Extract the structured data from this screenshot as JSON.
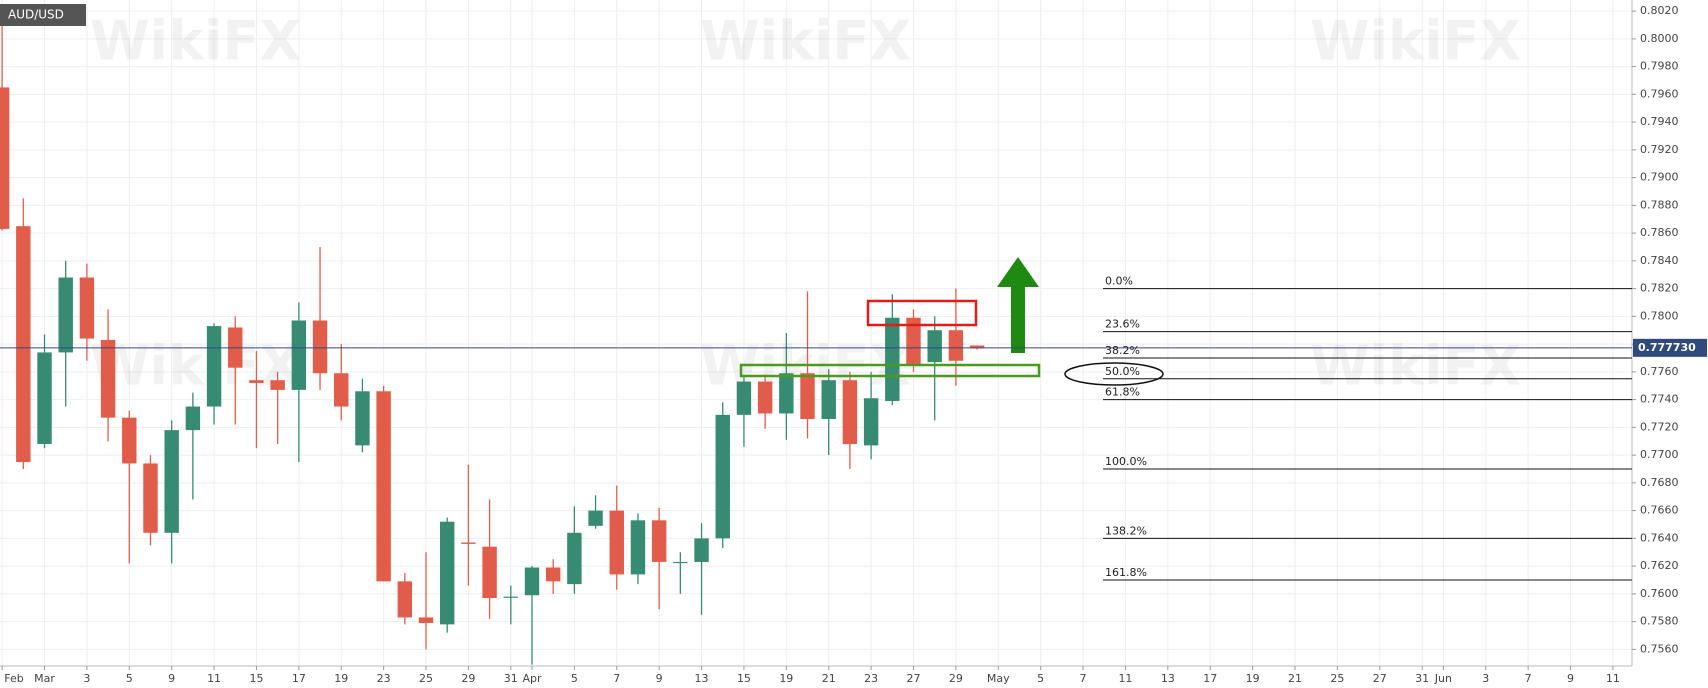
{
  "chart_data": {
    "type": "candlestick",
    "symbol": "AUD/USD",
    "watermark": "WikiFX",
    "up_color": "#378b73",
    "down_color": "#e25c4a",
    "grid": true,
    "x": [
      0,
      1,
      2,
      3,
      4,
      5,
      6,
      7,
      8,
      9,
      10,
      11,
      12,
      13,
      14,
      15,
      16,
      17,
      18,
      19,
      20,
      21,
      22,
      23,
      24,
      25,
      26,
      27,
      28,
      29,
      30,
      31,
      32,
      33,
      34,
      35,
      36,
      37,
      38,
      39,
      40,
      41,
      42,
      43,
      44,
      45,
      46
    ],
    "open": [
      0.7965,
      0.7865,
      0.7708,
      0.7774,
      0.7828,
      0.7783,
      0.7727,
      0.7694,
      0.7644,
      0.7718,
      0.7735,
      0.7792,
      0.7754,
      0.7754,
      0.7747,
      0.7797,
      0.7759,
      0.7707,
      0.7746,
      0.7609,
      0.7583,
      0.7578,
      0.7637,
      0.7634,
      0.7598,
      0.7599,
      0.7619,
      0.7607,
      0.7649,
      0.766,
      0.7614,
      0.7653,
      0.7623,
      0.7623,
      0.764,
      0.7729,
      0.7753,
      0.773,
      0.7759,
      0.7726,
      0.7754,
      0.7707,
      0.7739,
      0.7799,
      0.7767,
      0.779,
      0.7779
    ],
    "high": [
      0.801,
      0.7885,
      0.7787,
      0.784,
      0.7838,
      0.7805,
      0.7732,
      0.77,
      0.7725,
      0.7745,
      0.7795,
      0.78,
      0.7775,
      0.776,
      0.781,
      0.785,
      0.778,
      0.7755,
      0.775,
      0.7615,
      0.763,
      0.7655,
      0.7693,
      0.7668,
      0.7606,
      0.762,
      0.7625,
      0.7663,
      0.7671,
      0.7678,
      0.7658,
      0.7662,
      0.763,
      0.7651,
      0.7738,
      0.7757,
      0.7758,
      0.7788,
      0.7818,
      0.7762,
      0.776,
      0.776,
      0.7816,
      0.7805,
      0.78,
      0.782,
      0.7779
    ],
    "low": [
      0.7862,
      0.769,
      0.7705,
      0.7735,
      0.7768,
      0.771,
      0.7622,
      0.7635,
      0.7622,
      0.7668,
      0.7722,
      0.7722,
      0.7705,
      0.7708,
      0.7695,
      0.7747,
      0.7725,
      0.7702,
      0.7609,
      0.7578,
      0.756,
      0.7572,
      0.7606,
      0.7582,
      0.7578,
      0.7549,
      0.76,
      0.76,
      0.7647,
      0.7603,
      0.7607,
      0.7589,
      0.76,
      0.7585,
      0.7633,
      0.7706,
      0.7719,
      0.7711,
      0.7712,
      0.77,
      0.769,
      0.7697,
      0.7736,
      0.776,
      0.7725,
      0.775,
      0.7776
    ],
    "close": [
      0.7863,
      0.7695,
      0.7774,
      0.7828,
      0.7784,
      0.7727,
      0.7694,
      0.7644,
      0.7718,
      0.7735,
      0.7793,
      0.7763,
      0.7752,
      0.7747,
      0.7797,
      0.7759,
      0.7735,
      0.7746,
      0.7609,
      0.7583,
      0.7579,
      0.7652,
      0.7636,
      0.7597,
      0.7598,
      0.7619,
      0.7609,
      0.7644,
      0.766,
      0.7614,
      0.7653,
      0.7623,
      0.7623,
      0.764,
      0.7729,
      0.7753,
      0.773,
      0.7759,
      0.7726,
      0.7754,
      0.7708,
      0.7741,
      0.7799,
      0.7765,
      0.779,
      0.7768,
      0.7777
    ],
    "xlim": [
      -0.1,
      76.9
    ],
    "ylim": [
      0.7548,
      0.8028
    ],
    "xticks": [
      {
        "value": 0,
        "label": "Feb"
      },
      {
        "value": 2,
        "label": "Mar"
      },
      {
        "value": 4,
        "label": "3"
      },
      {
        "value": 6,
        "label": "5"
      },
      {
        "value": 8,
        "label": "9"
      },
      {
        "value": 10,
        "label": "11"
      },
      {
        "value": 12,
        "label": "15"
      },
      {
        "value": 14,
        "label": "17"
      },
      {
        "value": 16,
        "label": "19"
      },
      {
        "value": 18,
        "label": "23"
      },
      {
        "value": 20,
        "label": "25"
      },
      {
        "value": 22,
        "label": "29"
      },
      {
        "value": 24,
        "label": "31"
      },
      {
        "value": 25,
        "label": "Apr"
      },
      {
        "value": 27,
        "label": "5"
      },
      {
        "value": 29,
        "label": "7"
      },
      {
        "value": 31,
        "label": "9"
      },
      {
        "value": 33,
        "label": "13"
      },
      {
        "value": 35,
        "label": "15"
      },
      {
        "value": 37,
        "label": "19"
      },
      {
        "value": 39,
        "label": "21"
      },
      {
        "value": 41,
        "label": "23"
      },
      {
        "value": 43,
        "label": "27"
      },
      {
        "value": 45,
        "label": "29"
      },
      {
        "value": 47,
        "label": "May"
      },
      {
        "value": 49,
        "label": "5"
      },
      {
        "value": 51,
        "label": "7"
      },
      {
        "value": 53,
        "label": "11"
      },
      {
        "value": 55,
        "label": "13"
      },
      {
        "value": 57,
        "label": "17"
      },
      {
        "value": 59,
        "label": "19"
      },
      {
        "value": 61,
        "label": "21"
      },
      {
        "value": 63,
        "label": "25"
      },
      {
        "value": 65,
        "label": "27"
      },
      {
        "value": 67,
        "label": "31"
      },
      {
        "value": 68,
        "label": "Jun"
      },
      {
        "value": 70,
        "label": "3"
      },
      {
        "value": 72,
        "label": "7"
      },
      {
        "value": 74,
        "label": "9"
      },
      {
        "value": 76,
        "label": "11"
      }
    ],
    "yticks": [
      {
        "value": 0.756,
        "label": "0.7560"
      },
      {
        "value": 0.758,
        "label": "0.7580"
      },
      {
        "value": 0.76,
        "label": "0.7600"
      },
      {
        "value": 0.762,
        "label": "0.7620"
      },
      {
        "value": 0.764,
        "label": "0.7640"
      },
      {
        "value": 0.766,
        "label": "0.7660"
      },
      {
        "value": 0.768,
        "label": "0.7680"
      },
      {
        "value": 0.77,
        "label": "0.7700"
      },
      {
        "value": 0.772,
        "label": "0.7720"
      },
      {
        "value": 0.774,
        "label": "0.7740"
      },
      {
        "value": 0.776,
        "label": "0.7760"
      },
      {
        "value": 0.778,
        "label": "0.7780"
      },
      {
        "value": 0.78,
        "label": "0.7800"
      },
      {
        "value": 0.782,
        "label": "0.7820"
      },
      {
        "value": 0.784,
        "label": "0.7840"
      },
      {
        "value": 0.786,
        "label": "0.7860"
      },
      {
        "value": 0.788,
        "label": "0.7880"
      },
      {
        "value": 0.79,
        "label": "0.7900"
      },
      {
        "value": 0.792,
        "label": "0.7920"
      },
      {
        "value": 0.794,
        "label": "0.7940"
      },
      {
        "value": 0.796,
        "label": "0.7960"
      },
      {
        "value": 0.798,
        "label": "0.7980"
      },
      {
        "value": 0.8,
        "label": "0.8000"
      },
      {
        "value": 0.802,
        "label": "0.8020"
      }
    ],
    "last_price": {
      "value": 0.77773,
      "label": "0.777730"
    },
    "fib_levels": [
      {
        "label": "0.0%",
        "value": 0.782
      },
      {
        "label": "23.6%",
        "value": 0.7789
      },
      {
        "label": "38.2%",
        "value": 0.777
      },
      {
        "label": "50.0%",
        "value": 0.7755
      },
      {
        "label": "61.8%",
        "value": 0.774
      },
      {
        "label": "100.0%",
        "value": 0.769
      },
      {
        "label": "138.2%",
        "value": 0.764
      },
      {
        "label": "161.8%",
        "value": 0.761
      }
    ]
  }
}
